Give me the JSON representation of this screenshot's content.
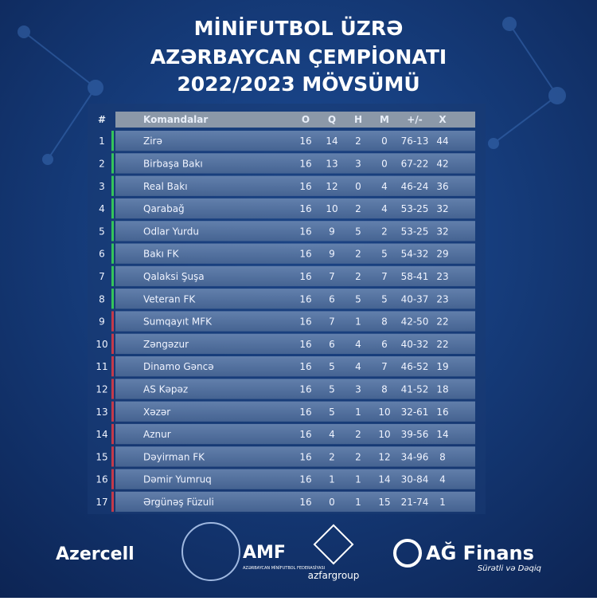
{
  "title": {
    "line1": "MİNİFUTBOL  ÜZRƏ",
    "line2": "AZƏRBAYCAN ÇEMPİONATI",
    "line3": "2022/2023 MÖVSÜMÜ"
  },
  "table": {
    "headers": [
      "#",
      "Komandalar",
      "O",
      "Q",
      "H",
      "M",
      "+/-",
      "X"
    ],
    "rows": [
      {
        "cells": [
          1,
          "Zirə",
          16,
          14,
          2,
          0,
          "76-13",
          44
        ],
        "color": "#35c45a"
      },
      {
        "cells": [
          2,
          "Birbaşa Bakı",
          16,
          13,
          3,
          0,
          "67-22",
          42
        ],
        "color": "#35c45a"
      },
      {
        "cells": [
          3,
          "Real Bakı",
          16,
          12,
          0,
          4,
          "46-24",
          36
        ],
        "color": "#35c45a"
      },
      {
        "cells": [
          4,
          "Qarabağ",
          16,
          10,
          2,
          4,
          "53-25",
          32
        ],
        "color": "#35c45a"
      },
      {
        "cells": [
          5,
          "Odlar Yurdu",
          16,
          9,
          5,
          2,
          "53-25",
          32
        ],
        "color": "#35c45a"
      },
      {
        "cells": [
          6,
          "Bakı FK",
          16,
          9,
          2,
          5,
          "54-32",
          29
        ],
        "color": "#35c45a"
      },
      {
        "cells": [
          7,
          "Qalaksi Şuşa",
          16,
          7,
          2,
          7,
          "58-41",
          23
        ],
        "color": "#35c45a"
      },
      {
        "cells": [
          8,
          "Veteran FK",
          16,
          6,
          5,
          5,
          "40-37",
          23
        ],
        "color": "#35c45a"
      },
      {
        "cells": [
          9,
          "Sumqayıt MFK",
          16,
          7,
          1,
          8,
          "42-50",
          22
        ],
        "color": "#c43a4a"
      },
      {
        "cells": [
          10,
          "Zəngəzur",
          16,
          6,
          4,
          6,
          "40-32",
          22
        ],
        "color": "#c43a4a"
      },
      {
        "cells": [
          11,
          "Dinamo Gəncə",
          16,
          5,
          4,
          7,
          "46-52",
          19
        ],
        "color": "#c43a4a"
      },
      {
        "cells": [
          12,
          "AS Kəpəz",
          16,
          5,
          3,
          8,
          "41-52",
          18
        ],
        "color": "#c43a4a"
      },
      {
        "cells": [
          13,
          "Xəzər",
          16,
          5,
          1,
          10,
          "32-61",
          16
        ],
        "color": "#c43a4a"
      },
      {
        "cells": [
          14,
          "Aznur",
          16,
          4,
          2,
          10,
          "39-56",
          14
        ],
        "color": "#c43a4a"
      },
      {
        "cells": [
          15,
          "Dəyirman FK",
          16,
          2,
          2,
          12,
          "34-96",
          8
        ],
        "color": "#c43a4a"
      },
      {
        "cells": [
          16,
          "Dəmir Yumruq",
          16,
          1,
          1,
          14,
          "30-84",
          4
        ],
        "color": "#c43a4a"
      },
      {
        "cells": [
          17,
          "Ərgünəş Füzuli",
          16,
          0,
          1,
          15,
          "21-74",
          1
        ],
        "color": "#c43a4a"
      }
    ]
  },
  "sponsors": {
    "azercell": "Azercell",
    "amf": "AMF",
    "amf_sub": "AZƏRBAYCAN MİNİFUTBOL FEDERASİYASI",
    "azfar": "azfargroup",
    "agfinans": "AĞ Finans",
    "agfinans_sub": "Sürətli və Dəqiq"
  }
}
